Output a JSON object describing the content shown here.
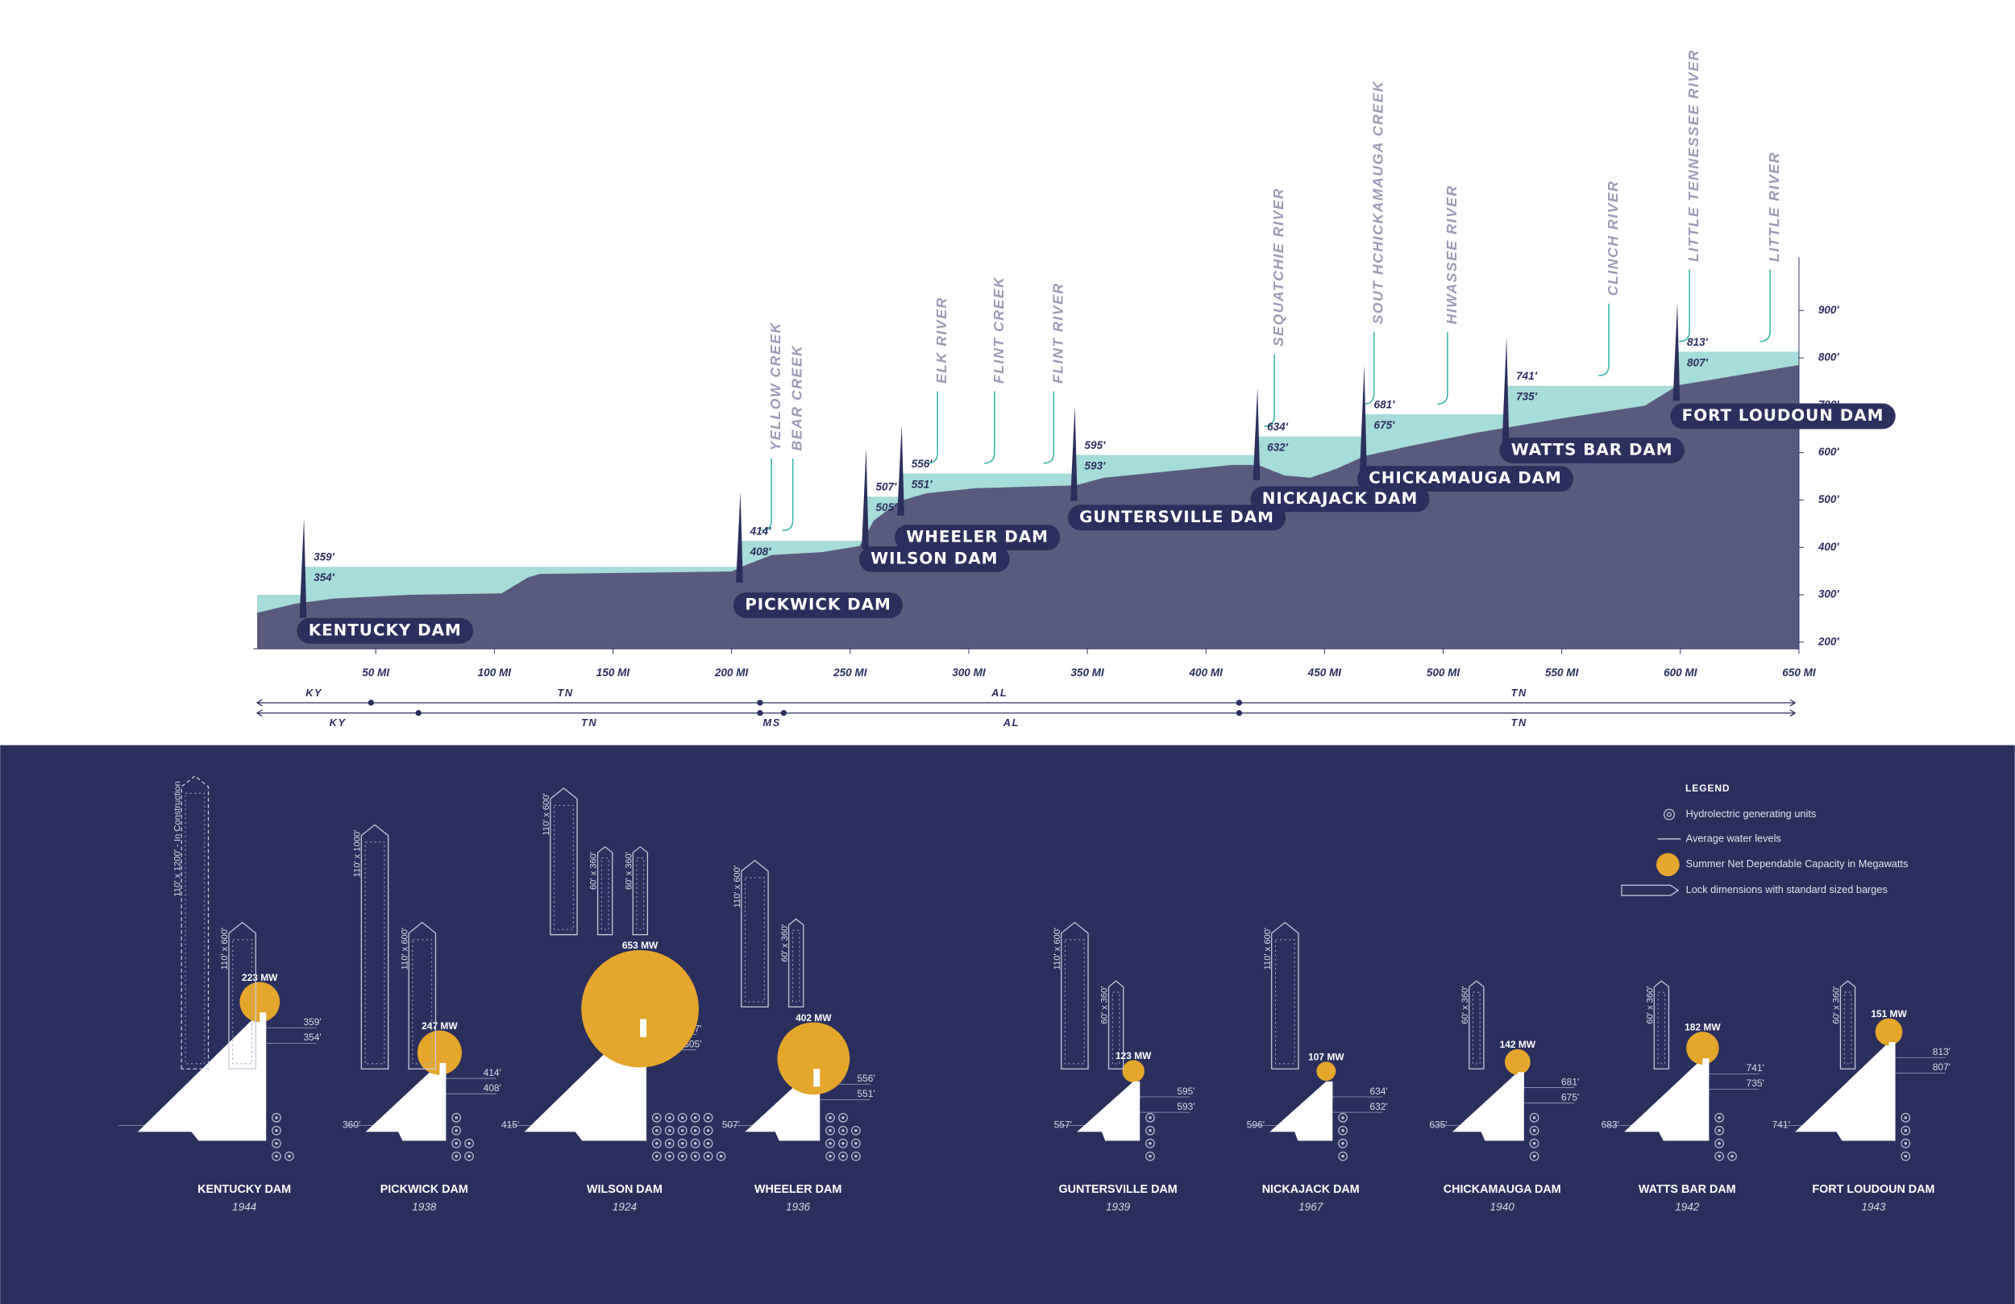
{
  "chart_data": {
    "type": "profile",
    "xlim": [
      0,
      650
    ],
    "ylim": [
      186,
      1013
    ],
    "xticks": [
      {
        "value": 50,
        "label": "50 MI"
      },
      {
        "value": 100,
        "label": "100 MI"
      },
      {
        "value": 150,
        "label": "150 MI"
      },
      {
        "value": 200,
        "label": "200 MI"
      },
      {
        "value": 250,
        "label": "250 MI"
      },
      {
        "value": 300,
        "label": "300 MI"
      },
      {
        "value": 350,
        "label": "350 MI"
      },
      {
        "value": 400,
        "label": "400 MI"
      },
      {
        "value": 450,
        "label": "450 MI"
      },
      {
        "value": 500,
        "label": "500 MI"
      },
      {
        "value": 550,
        "label": "550 MI"
      },
      {
        "value": 600,
        "label": "600 MI"
      },
      {
        "value": 650,
        "label": "650 MI"
      }
    ],
    "yticks": [
      {
        "value": 200,
        "label": "200'"
      },
      {
        "value": 300,
        "label": "300'"
      },
      {
        "value": 400,
        "label": "400'"
      },
      {
        "value": 500,
        "label": "500'"
      },
      {
        "value": 600,
        "label": "600'"
      },
      {
        "value": 700,
        "label": "700'"
      },
      {
        "value": 800,
        "label": "800'"
      },
      {
        "value": 900,
        "label": "900'"
      }
    ],
    "bed": {
      "color": "#595b7e",
      "x": [
        0,
        16,
        32,
        65,
        103,
        114,
        119,
        200,
        206,
        217,
        238,
        254,
        260,
        271,
        282,
        303,
        345,
        357,
        379,
        411,
        422,
        433,
        444,
        455,
        467,
        487,
        514,
        527,
        552,
        585,
        599,
        650
      ],
      "values": [
        262,
        281,
        292,
        300,
        303,
        336,
        344,
        349,
        363,
        384,
        390,
        403,
        457,
        498,
        514,
        525,
        531,
        547,
        558,
        574,
        574,
        552,
        547,
        566,
        593,
        615,
        642,
        653,
        674,
        699,
        742,
        785
      ]
    },
    "water": {
      "color": "#a6dcd9",
      "start": 300
    },
    "dams": [
      {
        "name": "KENTUCKY DAM",
        "mile": 20,
        "upper": 359,
        "upper_label": "359'",
        "lower": 354,
        "lower_label": "354'"
      },
      {
        "name": "PICKWICK DAM",
        "mile": 204,
        "upper": 414,
        "upper_label": "414'",
        "lower": 408,
        "lower_label": "408'"
      },
      {
        "name": "WILSON DAM",
        "mile": 257,
        "upper": 507,
        "upper_label": "507'",
        "lower": 505,
        "lower_label": "505'"
      },
      {
        "name": "WHEELER DAM",
        "mile": 272,
        "upper": 556,
        "upper_label": "556'",
        "lower": 551,
        "lower_label": "551'"
      },
      {
        "name": "GUNTERSVILLE DAM",
        "mile": 345,
        "upper": 595,
        "upper_label": "595'",
        "lower": 593,
        "lower_label": "593'"
      },
      {
        "name": "NICKAJACK DAM",
        "mile": 422,
        "upper": 634,
        "upper_label": "634'",
        "lower": 632,
        "lower_label": "632'"
      },
      {
        "name": "CHICKAMAUGA DAM",
        "mile": 467,
        "upper": 681,
        "upper_label": "681'",
        "lower": 675,
        "lower_label": "675'"
      },
      {
        "name": "WATTS BAR DAM",
        "mile": 527,
        "upper": 741,
        "upper_label": "741'",
        "lower": 735,
        "lower_label": "735'"
      },
      {
        "name": "FORT LOUDOUN DAM",
        "mile": 599,
        "upper": 813,
        "upper_label": "813'",
        "lower": 807,
        "lower_label": "807'"
      }
    ],
    "tributaries": [
      {
        "label": "YELLOW CREEK",
        "mile": 219
      },
      {
        "label": "BEAR CREEK",
        "mile": 228
      },
      {
        "label": "ELK RIVER",
        "mile": 289
      },
      {
        "label": "FLINT CREEK",
        "mile": 313
      },
      {
        "label": "FLINT RIVER",
        "mile": 338
      },
      {
        "label": "SEQUATCHIE RIVER",
        "mile": 431
      },
      {
        "label": "SOUT HCHICKAMAUGA CREEK",
        "mile": 473
      },
      {
        "label": "HIWASSEE RIVER",
        "mile": 504
      },
      {
        "label": "CLINCH RIVER",
        "mile": 572
      },
      {
        "label": "LITTLE TENNESSEE RIVER",
        "mile": 606
      },
      {
        "label": "LITTLE RIVER",
        "mile": 640
      }
    ],
    "states": [
      {
        "labels": [
          "KY",
          "TN",
          "AL",
          "TN"
        ],
        "breaks": [
          48,
          212,
          414
        ]
      },
      {
        "labels": [
          "KY",
          "TN",
          "MS",
          "AL",
          "TN"
        ],
        "breaks": [
          68,
          212,
          222,
          414
        ]
      }
    ]
  },
  "legend": {
    "title": "LEGEND",
    "items": [
      "Hydrolectric generating units",
      "Average water levels",
      "Summer Net Dependable Capacity in Megawatts",
      "Lock dimensions with standard sized barges"
    ]
  },
  "dam_cards": [
    {
      "year": 1944,
      "mw": 223,
      "mw_label": "223 MW",
      "units": 5,
      "locks": [
        {
          "label": "110' x 1200' - In Construction",
          "width": 110,
          "length": 1200,
          "dashed": true
        },
        {
          "label": "110' x 600'",
          "width": 110,
          "length": 600
        }
      ]
    },
    {
      "year": 1938,
      "mw": 247,
      "mw_label": "247 MW",
      "downstream": 360,
      "downstream_label": "360'",
      "units": 6,
      "locks": [
        {
          "label": "110' x 1000'",
          "width": 110,
          "length": 1000
        },
        {
          "label": "110' x 600'",
          "width": 110,
          "length": 600
        }
      ]
    },
    {
      "year": 1924,
      "mw": 653,
      "mw_label": "653 MW",
      "downstream": 415,
      "downstream_label": "415'",
      "units": 21,
      "locks": [
        {
          "label": "110' x 600'",
          "width": 110,
          "length": 600
        },
        {
          "label": "60' x 360'",
          "width": 60,
          "length": 360
        },
        {
          "label": "60' x 360'",
          "width": 60,
          "length": 360
        }
      ]
    },
    {
      "year": 1936,
      "mw": 402,
      "mw_label": "402 MW",
      "downstream": 507,
      "downstream_label": "507'",
      "units": 11,
      "locks": [
        {
          "label": "110' x 600'",
          "width": 110,
          "length": 600
        },
        {
          "label": "60' x 360'",
          "width": 60,
          "length": 360
        }
      ]
    },
    {
      "year": 1939,
      "mw": 123,
      "mw_label": "123 MW",
      "downstream": 557,
      "downstream_label": "557'",
      "units": 4,
      "locks": [
        {
          "label": "110' x 600'",
          "width": 110,
          "length": 600
        },
        {
          "label": "60' x 360'",
          "width": 60,
          "length": 360
        }
      ]
    },
    {
      "year": 1967,
      "mw": 107,
      "mw_label": "107 MW",
      "downstream": 596,
      "downstream_label": "596'",
      "units": 4,
      "locks": [
        {
          "label": "110' x 600'",
          "width": 110,
          "length": 600
        }
      ]
    },
    {
      "year": 1940,
      "mw": 142,
      "mw_label": "142 MW",
      "downstream": 635,
      "downstream_label": "635'",
      "units": 4,
      "locks": [
        {
          "label": "60' x 360'",
          "width": 60,
          "length": 360
        }
      ]
    },
    {
      "year": 1942,
      "mw": 182,
      "mw_label": "182 MW",
      "downstream": 683,
      "downstream_label": "683'",
      "units": 5,
      "locks": [
        {
          "label": "60' x 360'",
          "width": 60,
          "length": 360
        }
      ]
    },
    {
      "year": 1943,
      "mw": 151,
      "mw_label": "151 MW",
      "downstream": 741,
      "downstream_label": "741'",
      "units": 4,
      "locks": [
        {
          "label": "60' x 360'",
          "width": 60,
          "length": 360
        }
      ]
    }
  ]
}
